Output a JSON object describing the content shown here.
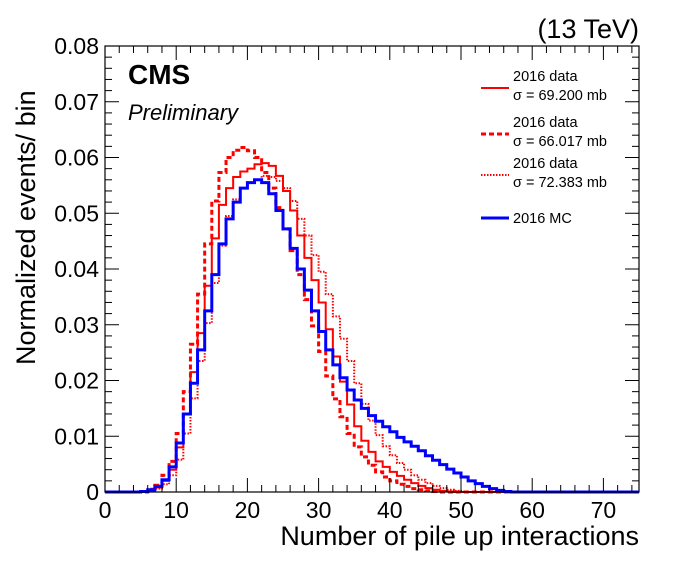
{
  "chart_data": {
    "type": "histogram-step",
    "energy_label": "(13 TeV)",
    "experiment": "CMS",
    "status": "Preliminary",
    "xlabel": "Number of pile up interactions",
    "ylabel": "Normalized events/ bin",
    "xlim": [
      0,
      75
    ],
    "ylim": [
      0,
      0.08
    ],
    "bin_width": 1,
    "x_ticks": [
      0,
      10,
      20,
      30,
      40,
      50,
      60,
      70
    ],
    "x_tick_labels": [
      "0",
      "10",
      "20",
      "30",
      "40",
      "50",
      "60",
      "70"
    ],
    "y_ticks": [
      0,
      0.01,
      0.02,
      0.03,
      0.04,
      0.05,
      0.06,
      0.07,
      0.08
    ],
    "y_tick_labels": [
      "0",
      "0.01",
      "0.02",
      "0.03",
      "0.04",
      "0.05",
      "0.06",
      "0.07",
      "0.08"
    ],
    "legend_placement": "top-right",
    "series": [
      {
        "legend_line1": "2016 data",
        "legend_line2": "σ = 69.200 mb",
        "color": "#ff0000",
        "style": "solid",
        "width": 2,
        "points": [
          [
            6,
            0.0003
          ],
          [
            7,
            0.0008
          ],
          [
            8,
            0.002
          ],
          [
            9,
            0.004
          ],
          [
            10,
            0.008
          ],
          [
            11,
            0.014
          ],
          [
            12,
            0.0215
          ],
          [
            13,
            0.0285
          ],
          [
            14,
            0.037
          ],
          [
            15,
            0.0455
          ],
          [
            16,
            0.0515
          ],
          [
            17,
            0.0545
          ],
          [
            18,
            0.0565
          ],
          [
            19,
            0.0575
          ],
          [
            20,
            0.058
          ],
          [
            21,
            0.0588
          ],
          [
            22,
            0.059
          ],
          [
            23,
            0.0585
          ],
          [
            24,
            0.0567
          ],
          [
            25,
            0.054
          ],
          [
            26,
            0.0505
          ],
          [
            27,
            0.046
          ],
          [
            28,
            0.042
          ],
          [
            29,
            0.038
          ],
          [
            30,
            0.034
          ],
          [
            31,
            0.0292
          ],
          [
            32,
            0.0243
          ],
          [
            33,
            0.0198
          ],
          [
            34,
            0.0157
          ],
          [
            35,
            0.0118
          ],
          [
            36,
            0.0092
          ],
          [
            37,
            0.0072
          ],
          [
            38,
            0.0055
          ],
          [
            39,
            0.0045
          ],
          [
            40,
            0.0036
          ],
          [
            41,
            0.0029
          ],
          [
            42,
            0.0022
          ],
          [
            43,
            0.0016
          ],
          [
            44,
            0.0011
          ],
          [
            45,
            0.0007
          ],
          [
            46,
            0.0004
          ],
          [
            47,
            0.0002
          ],
          [
            48,
            0.0001
          ]
        ]
      },
      {
        "legend_line1": "2016 data",
        "legend_line2": "σ =  66.017 mb",
        "color": "#ff0000",
        "style": "dashed",
        "width": 3,
        "points": [
          [
            6,
            0.0005
          ],
          [
            7,
            0.0012
          ],
          [
            8,
            0.003
          ],
          [
            9,
            0.0055
          ],
          [
            10,
            0.0105
          ],
          [
            11,
            0.018
          ],
          [
            12,
            0.0265
          ],
          [
            13,
            0.0355
          ],
          [
            14,
            0.0445
          ],
          [
            15,
            0.0522
          ],
          [
            16,
            0.0573
          ],
          [
            17,
            0.06
          ],
          [
            18,
            0.0613
          ],
          [
            19,
            0.0618
          ],
          [
            20,
            0.0612
          ],
          [
            21,
            0.06
          ],
          [
            22,
            0.0573
          ],
          [
            23,
            0.0545
          ],
          [
            24,
            0.051
          ],
          [
            25,
            0.0472
          ],
          [
            26,
            0.0433
          ],
          [
            27,
            0.039
          ],
          [
            28,
            0.0345
          ],
          [
            29,
            0.0298
          ],
          [
            30,
            0.0252
          ],
          [
            31,
            0.0208
          ],
          [
            32,
            0.0167
          ],
          [
            33,
            0.0135
          ],
          [
            34,
            0.0105
          ],
          [
            35,
            0.0081
          ],
          [
            36,
            0.0063
          ],
          [
            37,
            0.0048
          ],
          [
            38,
            0.0036
          ],
          [
            39,
            0.0027
          ],
          [
            40,
            0.002
          ],
          [
            41,
            0.0014
          ],
          [
            42,
            0.001
          ],
          [
            43,
            0.0006
          ],
          [
            44,
            0.0004
          ],
          [
            45,
            0.0002
          ],
          [
            46,
            0.0001
          ]
        ]
      },
      {
        "legend_line1": "2016 data",
        "legend_line2": "σ = 72.383 mb",
        "color": "#ff0000",
        "style": "dotted",
        "width": 2,
        "points": [
          [
            6,
            0.0002
          ],
          [
            7,
            0.0006
          ],
          [
            8,
            0.0014
          ],
          [
            9,
            0.003
          ],
          [
            10,
            0.0058
          ],
          [
            11,
            0.0105
          ],
          [
            12,
            0.0168
          ],
          [
            13,
            0.0235
          ],
          [
            14,
            0.0303
          ],
          [
            15,
            0.0375
          ],
          [
            16,
            0.0442
          ],
          [
            17,
            0.0495
          ],
          [
            18,
            0.0525
          ],
          [
            19,
            0.0545
          ],
          [
            20,
            0.0555
          ],
          [
            21,
            0.056
          ],
          [
            22,
            0.0567
          ],
          [
            23,
            0.0565
          ],
          [
            24,
            0.0558
          ],
          [
            25,
            0.0545
          ],
          [
            26,
            0.0522
          ],
          [
            27,
            0.049
          ],
          [
            28,
            0.046
          ],
          [
            29,
            0.0425
          ],
          [
            30,
            0.0395
          ],
          [
            31,
            0.0355
          ],
          [
            32,
            0.0315
          ],
          [
            33,
            0.0275
          ],
          [
            34,
            0.0235
          ],
          [
            35,
            0.0195
          ],
          [
            36,
            0.0158
          ],
          [
            37,
            0.0128
          ],
          [
            38,
            0.0102
          ],
          [
            39,
            0.0082
          ],
          [
            40,
            0.0066
          ],
          [
            41,
            0.0052
          ],
          [
            42,
            0.004
          ],
          [
            43,
            0.003
          ],
          [
            44,
            0.0022
          ],
          [
            45,
            0.0016
          ],
          [
            46,
            0.0011
          ],
          [
            47,
            0.0007
          ],
          [
            48,
            0.0004
          ],
          [
            49,
            0.0002
          ],
          [
            50,
            0.0001
          ]
        ]
      },
      {
        "legend_line1": "2016 MC",
        "legend_line2": "",
        "color": "#0000ff",
        "style": "solid",
        "width": 3,
        "points": [
          [
            5,
            0.0001
          ],
          [
            6,
            0.0004
          ],
          [
            7,
            0.001
          ],
          [
            8,
            0.0022
          ],
          [
            9,
            0.0045
          ],
          [
            10,
            0.0088
          ],
          [
            11,
            0.014
          ],
          [
            12,
            0.0195
          ],
          [
            13,
            0.0255
          ],
          [
            14,
            0.0325
          ],
          [
            15,
            0.039
          ],
          [
            16,
            0.0445
          ],
          [
            17,
            0.049
          ],
          [
            18,
            0.052
          ],
          [
            19,
            0.0545
          ],
          [
            20,
            0.0555
          ],
          [
            21,
            0.056
          ],
          [
            22,
            0.0555
          ],
          [
            23,
            0.0535
          ],
          [
            24,
            0.0505
          ],
          [
            25,
            0.0472
          ],
          [
            26,
            0.0437
          ],
          [
            27,
            0.04
          ],
          [
            28,
            0.0362
          ],
          [
            29,
            0.0325
          ],
          [
            30,
            0.0288
          ],
          [
            31,
            0.0255
          ],
          [
            32,
            0.0228
          ],
          [
            33,
            0.0205
          ],
          [
            34,
            0.0183
          ],
          [
            35,
            0.0165
          ],
          [
            36,
            0.015
          ],
          [
            37,
            0.0137
          ],
          [
            38,
            0.0127
          ],
          [
            39,
            0.0117
          ],
          [
            40,
            0.0108
          ],
          [
            41,
            0.0098
          ],
          [
            42,
            0.009
          ],
          [
            43,
            0.0082
          ],
          [
            44,
            0.0074
          ],
          [
            45,
            0.0065
          ],
          [
            46,
            0.0057
          ],
          [
            47,
            0.0049
          ],
          [
            48,
            0.0041
          ],
          [
            49,
            0.0034
          ],
          [
            50,
            0.0027
          ],
          [
            51,
            0.002
          ],
          [
            52,
            0.0015
          ],
          [
            53,
            0.001
          ],
          [
            54,
            0.0006
          ],
          [
            55,
            0.0003
          ],
          [
            56,
            0.0001
          ]
        ]
      }
    ]
  }
}
